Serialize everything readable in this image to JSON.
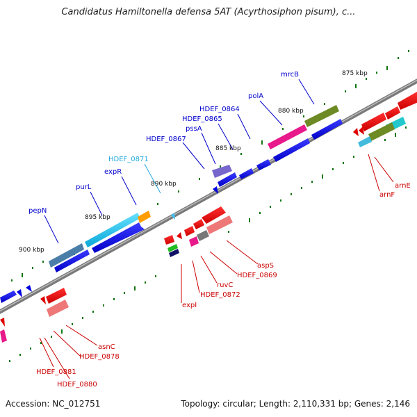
{
  "title": "Candidatus Hamiltonella defensa 5AT (Acyrthosiphon pisum), c...",
  "accession": "Accession: NC_012751",
  "summary": "Topology: circular; Length: 2,110,331 bp; Genes: 2,146",
  "colors": {
    "forward_label": "#0000cc",
    "reverse_label": "#cc0000",
    "highlight_label": "#22aadd",
    "backbone": "#777777",
    "tick": "#117711"
  },
  "scale_labels": [
    "875 kbp",
    "880 kbp",
    "885 kbp",
    "890 kbp",
    "895 kbp",
    "900 kbp"
  ],
  "forward_genes": [
    "mrcB",
    "polA",
    "HDEF_0864",
    "HDEF_0865",
    "pssA",
    "HDEF_0867",
    "HDEF_0871",
    "expR",
    "purL",
    "pepN"
  ],
  "reverse_genes": [
    "arnE",
    "arnF",
    "aspS",
    "HDEF_0869",
    "ruvC",
    "HDEF_0872",
    "expI",
    "asnC",
    "HDEF_0878",
    "HDEF_0881",
    "HDEF_0880"
  ],
  "icons": [
    "forward-arrow-icon",
    "reverse-arrow-icon"
  ]
}
